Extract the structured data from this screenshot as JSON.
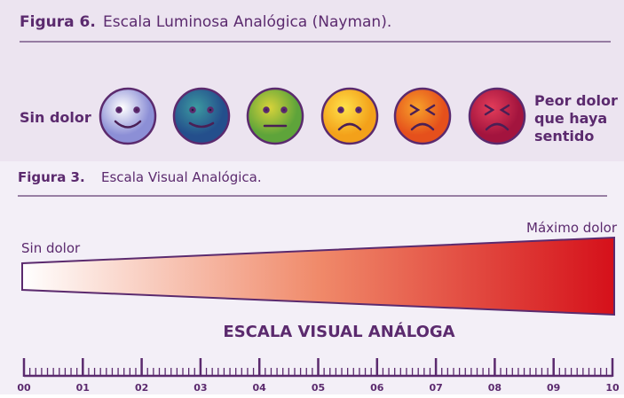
{
  "figure_top": {
    "label": "Figura 6.",
    "caption": "Escala Luminosa Analógica (Nayman).",
    "left_label": "Sin dolor",
    "right_label_lines": [
      "Peor dolor",
      "que haya",
      "sentido"
    ]
  },
  "figure_bottom": {
    "label": "Figura 3.",
    "caption": "Escala Visual Analógica.",
    "left_label": "Sin dolor",
    "right_label": "Máximo dolor",
    "scale_title": "ESCALA VISUAL ANÁLOGA",
    "scale_labels": [
      "00",
      "01",
      "02",
      "03",
      "04",
      "05",
      "06",
      "07",
      "08",
      "09",
      "10"
    ]
  }
}
